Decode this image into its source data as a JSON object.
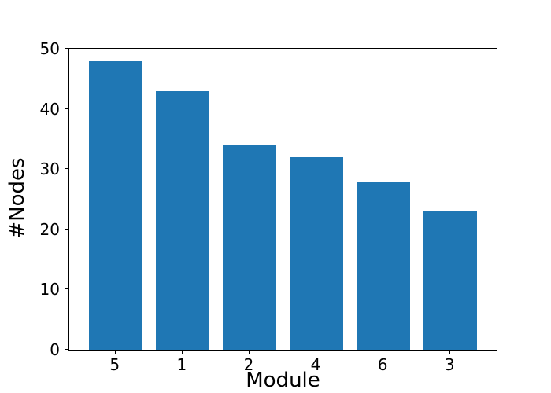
{
  "chart_data": {
    "type": "bar",
    "title": "",
    "xlabel": "Module",
    "ylabel": "#Nodes",
    "categories": [
      "5",
      "1",
      "2",
      "4",
      "6",
      "3"
    ],
    "values": [
      48,
      43,
      34,
      32,
      28,
      23
    ],
    "yticks": [
      0,
      10,
      20,
      30,
      40,
      50
    ],
    "ylim": [
      0,
      50
    ],
    "xlim": [
      -0.69,
      5.69
    ],
    "bar_rel_width": 0.8,
    "bar_color": "#1f77b4",
    "spine_color": "#000000",
    "grid": "off",
    "legend": "none",
    "background_color": "#ffffff"
  }
}
